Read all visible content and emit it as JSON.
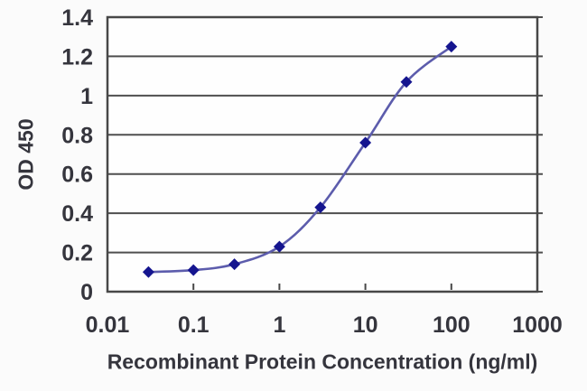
{
  "chart_data": {
    "type": "line",
    "xlabel": "Recombinant Protein Concentration (ng/ml)",
    "ylabel": "OD 450",
    "xscale": "log",
    "xlim": [
      0.01,
      1000
    ],
    "ylim": [
      0,
      1.4
    ],
    "x": [
      0.03,
      0.1,
      0.3,
      1,
      3,
      10,
      30,
      100
    ],
    "y": [
      0.1,
      0.11,
      0.14,
      0.23,
      0.43,
      0.76,
      1.07,
      1.25
    ],
    "xticks": [
      0.01,
      0.1,
      1,
      10,
      100,
      1000
    ],
    "xtick_labels": [
      "0.01",
      "0.1",
      "1",
      "10",
      "100",
      "1000"
    ],
    "yticks": [
      0,
      0.2,
      0.4,
      0.6,
      0.8,
      1,
      1.2,
      1.4
    ],
    "ytick_labels": [
      "0",
      "0.2",
      "0.4",
      "0.6",
      "0.8",
      "1",
      "1.2",
      "1.4"
    ],
    "grid": "horizontal",
    "legend": "none",
    "marker": "diamond",
    "colors": {
      "line": "#5c5cac",
      "marker": "#15158f",
      "grid": "#4f4f4f",
      "axis_box": "#474747",
      "text": "#35353d",
      "plot_background": "#fefefe"
    }
  }
}
